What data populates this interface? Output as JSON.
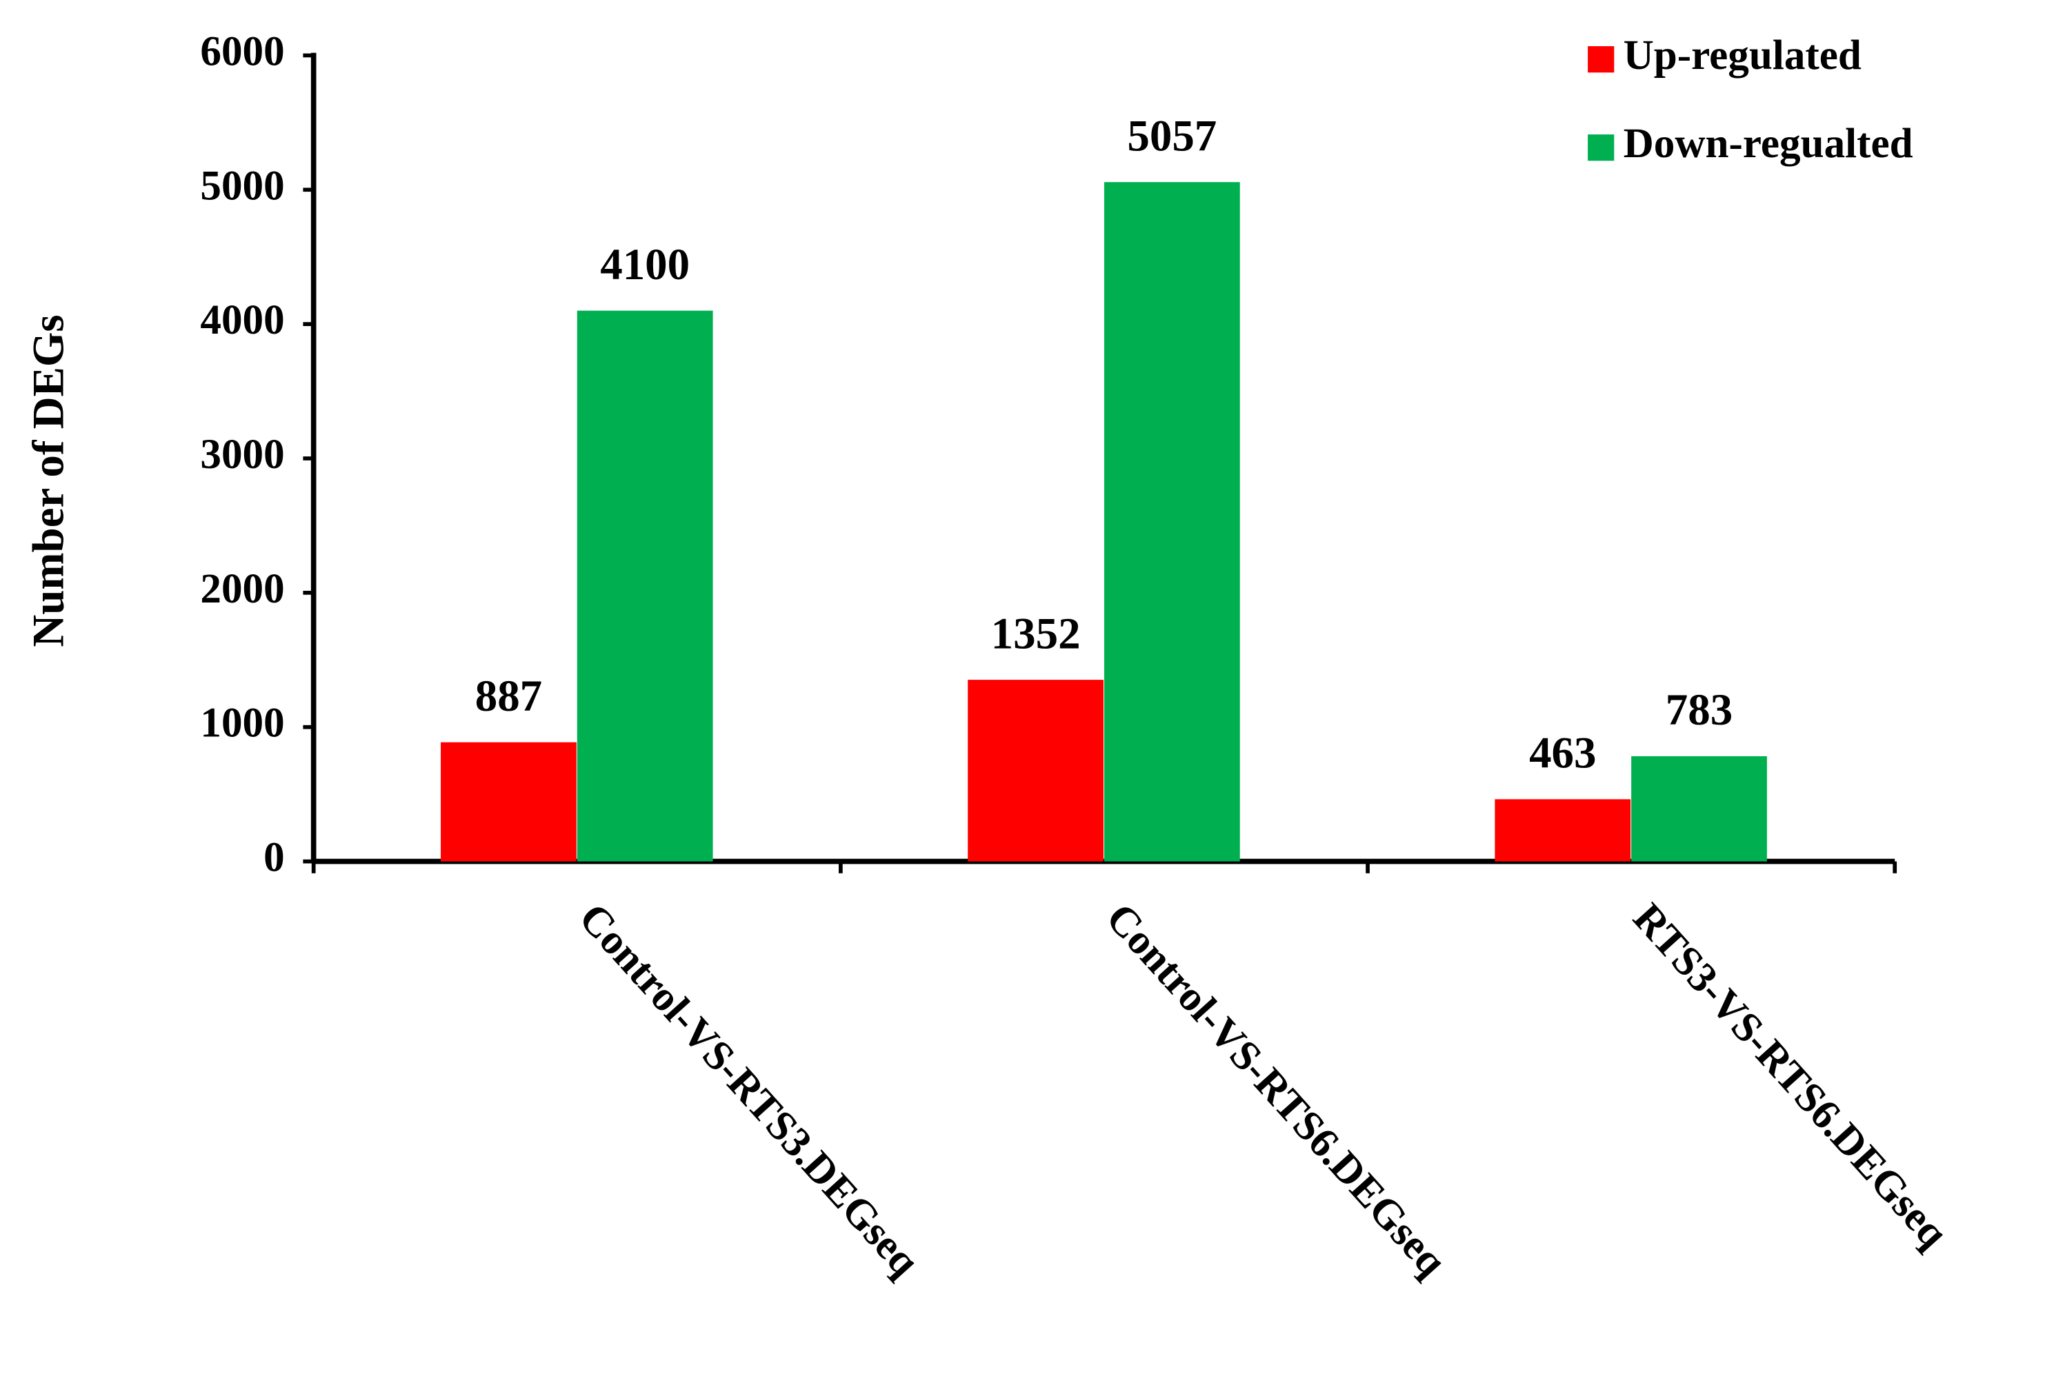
{
  "chart_data": {
    "type": "bar",
    "y_label": "Number of DEGs",
    "categories": [
      "Control-VS-RTS3.DEGseq",
      "Control-VS-RTS6.DEGseq",
      "RTS3-VS-RTS6.DEGseq"
    ],
    "series": [
      {
        "name": "Up-regulated",
        "color": "#ff0000",
        "values": [
          887,
          1352,
          463
        ]
      },
      {
        "name": "Down-regualted",
        "color": "#00b050",
        "values": [
          4100,
          5057,
          783
        ]
      }
    ],
    "ylim": [
      0,
      6000
    ],
    "yticks": [
      0,
      1000,
      2000,
      3000,
      4000,
      5000,
      6000
    ],
    "legend": "top-right",
    "grid": false
  }
}
